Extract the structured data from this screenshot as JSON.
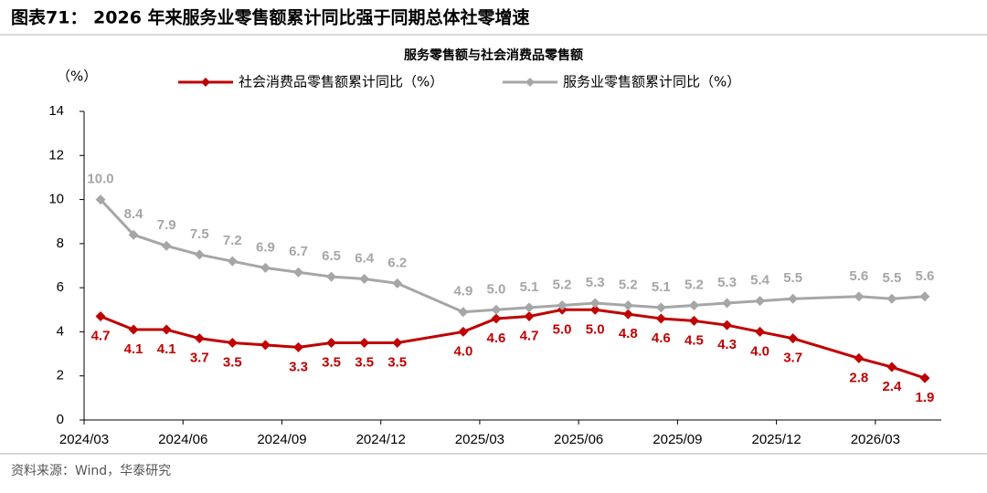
{
  "figure_title": "图表71： 2026 年来服务业零售额累计同比强于同期总体社零增速",
  "source": "资料来源：Wind，华泰研究",
  "chart_data": {
    "type": "line",
    "title": "服务零售额与社会消费品零售额",
    "y_label": "（%）",
    "x": [
      "2024/03",
      "2024/04",
      "2024/05",
      "2024/06",
      "2024/07",
      "2024/08",
      "2024/09",
      "2024/10",
      "2024/11",
      "2024/12",
      "2025/02",
      "2025/03",
      "2025/04",
      "2025/05",
      "2025/06",
      "2025/07",
      "2025/08",
      "2025/09",
      "2025/10",
      "2025/11",
      "2025/12",
      "2026/02",
      "2026/03",
      "2026/04"
    ],
    "xlim": [
      "2024/03",
      "2026/05"
    ],
    "xticks": [
      "2024/03",
      "2024/06",
      "2024/09",
      "2024/12",
      "2025/03",
      "2025/06",
      "2025/09",
      "2025/12",
      "2026/03"
    ],
    "ylim": [
      0,
      14
    ],
    "yticks": [
      0,
      2,
      4,
      6,
      8,
      10,
      12,
      14
    ],
    "grid": false,
    "series": [
      {
        "name": "社会消费品零售额累计同比（%）",
        "color": "#c00000",
        "values": [
          4.7,
          4.1,
          4.1,
          3.7,
          3.5,
          3.4,
          3.3,
          3.5,
          3.5,
          3.5,
          4.0,
          4.6,
          4.7,
          5.0,
          5.0,
          4.8,
          4.6,
          4.5,
          4.3,
          4.0,
          3.7,
          2.8,
          2.4,
          1.9
        ],
        "value_labels": [
          "4.7",
          "4.1",
          "4.1",
          "3.7",
          "3.5",
          null,
          "3.3",
          "3.5",
          "3.5",
          "3.5",
          "4.0",
          "4.6",
          "4.7",
          "5.0",
          "5.0",
          "4.8",
          "4.6",
          "4.5",
          "4.3",
          "4.0",
          "3.7",
          "2.8",
          "2.4",
          "1.9"
        ]
      },
      {
        "name": "服务业零售额累计同比（%）",
        "color": "#a6a6a6",
        "values": [
          10.0,
          8.4,
          7.9,
          7.5,
          7.2,
          6.9,
          6.7,
          6.5,
          6.4,
          6.2,
          4.9,
          5.0,
          5.1,
          5.2,
          5.3,
          5.2,
          5.1,
          5.2,
          5.3,
          5.4,
          5.5,
          5.6,
          5.5,
          5.6
        ],
        "value_labels": [
          "10.0",
          "8.4",
          "7.9",
          "7.5",
          "7.2",
          "6.9",
          "6.7",
          "6.5",
          "6.4",
          "6.2",
          "4.9",
          "5.0",
          "5.1",
          "5.2",
          "5.3",
          "5.2",
          "5.1",
          "5.2",
          "5.3",
          "5.4",
          "5.5",
          "5.6",
          "5.5",
          "5.6"
        ]
      }
    ]
  }
}
